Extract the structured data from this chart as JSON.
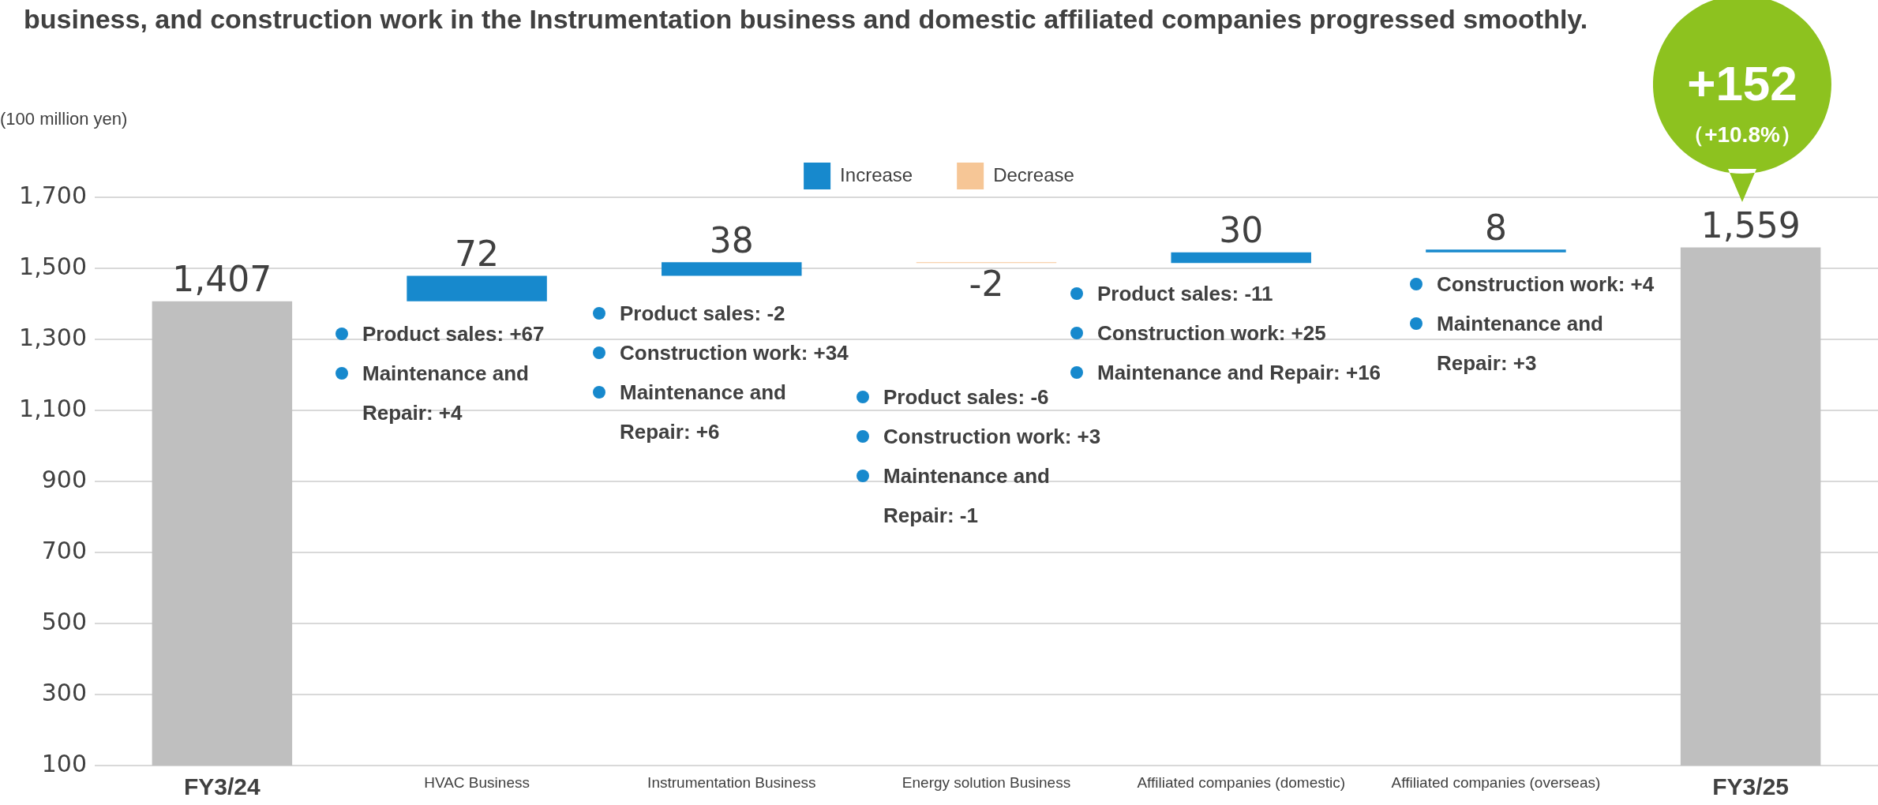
{
  "chart_data": {
    "type": "bar",
    "title": "business, and construction work in the Instrumentation business and domestic affiliated companies progressed smoothly.",
    "ylabel": "(100 million yen)",
    "categories": [
      "FY3/24",
      "HVAC Business",
      "Instrumentation Business",
      "Energy solution Business",
      "Affiliated companies (domestic)",
      "Affiliated companies (overseas)",
      "FY3/25"
    ],
    "series": [
      {
        "color": "#bfbfbf",
        "values": [
          1407,
          null,
          null,
          null,
          null,
          null,
          1559
        ],
        "value_labels": [
          "1,407",
          null,
          null,
          null,
          null,
          null,
          "1,559"
        ]
      },
      {
        "name": "Increase",
        "color": "#1789cd",
        "base": [
          null,
          1407,
          1479,
          null,
          1515,
          1545,
          null
        ],
        "values": [
          null,
          72,
          38,
          null,
          30,
          8,
          null
        ],
        "value_labels": [
          null,
          "72",
          "38",
          null,
          "30",
          "8",
          null
        ]
      },
      {
        "name": "Decrease",
        "color": "#f6c696",
        "base": [
          null,
          null,
          null,
          1517,
          null,
          null,
          null
        ],
        "values": [
          null,
          null,
          null,
          -2,
          null,
          null,
          null
        ],
        "value_labels": [
          null,
          null,
          null,
          "-2",
          null,
          null,
          null
        ]
      }
    ],
    "ylim": [
      100,
      1700
    ],
    "yticks": [
      100,
      300,
      500,
      700,
      900,
      {
        "value": 1100,
        "label": "1,100"
      },
      {
        "value": 1300,
        "label": "1,300"
      },
      {
        "value": 1500,
        "label": "1,500"
      },
      {
        "value": 1700,
        "label": "1,700"
      }
    ],
    "grid": "y",
    "legend": "top",
    "annotations": [
      "Product sales: +67",
      "Maintenance and Repair: +4",
      "Product sales: -2",
      "Construction work: +34",
      "Maintenance and Repair: +6",
      "Product sales: -6",
      "Construction work: +3",
      "Maintenance and Repair: -1",
      "Product sales: -11",
      "Construction work: +25",
      "Maintenance and Repair: +16",
      "Construction work: +4",
      "Maintenance and Repair: +3",
      "+152",
      "（+10.8%）"
    ]
  }
}
